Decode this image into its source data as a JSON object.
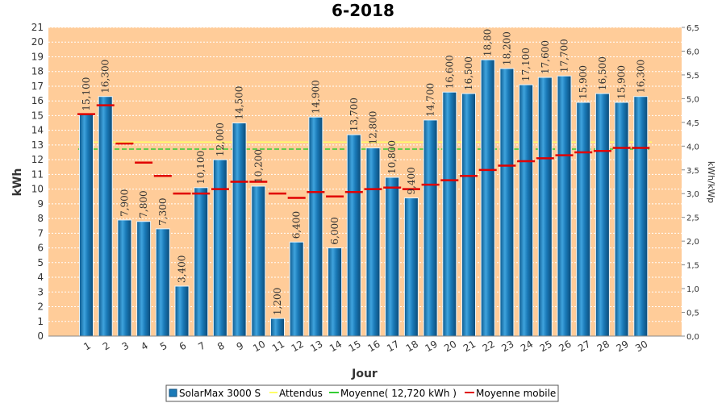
{
  "chart_data": {
    "type": "bar",
    "title": "6-2018",
    "xlabel": "Jour",
    "ylabel": "kWh",
    "y2label": "kWh/kWp",
    "ylim": [
      0,
      21
    ],
    "y2lim": [
      0,
      6.5
    ],
    "y2ticks": [
      "0,0",
      "0,5",
      "1,0",
      "1,5",
      "2,0",
      "2,5",
      "3,0",
      "3,5",
      "4,0",
      "4,5",
      "5,0",
      "5,5",
      "6,0",
      "6,5"
    ],
    "categories": [
      "1",
      "2",
      "3",
      "4",
      "5",
      "6",
      "7",
      "8",
      "9",
      "10",
      "11",
      "12",
      "13",
      "14",
      "15",
      "16",
      "17",
      "18",
      "19",
      "20",
      "21",
      "22",
      "23",
      "24",
      "25",
      "26",
      "27",
      "28",
      "29",
      "30"
    ],
    "series": [
      {
        "name": "SolarMax 3000 S",
        "kind": "bar",
        "values": [
          15.1,
          16.3,
          7.9,
          7.8,
          7.3,
          3.4,
          10.1,
          12.0,
          14.5,
          10.2,
          1.2,
          6.4,
          14.9,
          6.0,
          13.7,
          12.8,
          10.8,
          9.4,
          14.7,
          16.6,
          16.5,
          18.8,
          18.2,
          17.1,
          17.6,
          17.7,
          15.9,
          16.5,
          15.9,
          16.3
        ],
        "labels": [
          "15,100",
          "16,300",
          "7,900",
          "7,800",
          "7,300",
          "3,400",
          "10,100",
          "12,000",
          "14,500",
          "10,200",
          "1,200",
          "6,400",
          "14,900",
          "6,000",
          "13,700",
          "12,800",
          "10,800",
          "9,400",
          "14,700",
          "16,600",
          "16,500",
          "18,80",
          "18,200",
          "17,100",
          "17,600",
          "17,700",
          "15,900",
          "16,500",
          "15,900",
          "16,300"
        ]
      },
      {
        "name": "Attendus",
        "kind": "line",
        "value": 13.2
      },
      {
        "name": "Moyenne( 12,720 kWh )",
        "kind": "line",
        "value": 12.72
      },
      {
        "name": "Moyenne mobile",
        "kind": "marker",
        "values": [
          15.1,
          15.7,
          13.1,
          11.8,
          10.9,
          9.7,
          9.7,
          10.0,
          10.5,
          10.5,
          9.7,
          9.4,
          9.8,
          9.5,
          9.8,
          10.0,
          10.1,
          10.0,
          10.3,
          10.6,
          10.9,
          11.3,
          11.6,
          11.9,
          12.1,
          12.3,
          12.5,
          12.6,
          12.8,
          12.8
        ]
      }
    ],
    "legend_position": "bottom",
    "grid": true,
    "colors": {
      "plot_bg": "#ffcc99",
      "bar": "#1a7ab8",
      "bar_dark": "#0d4f7e",
      "bar_light": "#5fb3e3",
      "attendus": "#ffff66",
      "moyenne": "#33cc33",
      "mobile": "#e00000",
      "grid": "#ffffff"
    }
  }
}
